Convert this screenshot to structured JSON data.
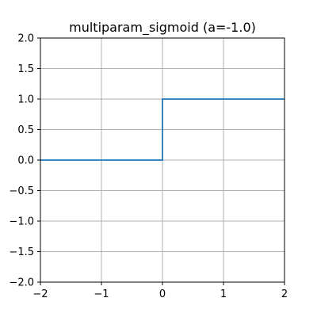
{
  "chart_data": {
    "type": "line",
    "title": "multiparam_sigmoid (a=-1.0)",
    "xlabel": "",
    "ylabel": "",
    "xlim": [
      -2,
      2
    ],
    "ylim": [
      -2,
      2
    ],
    "x_ticks": [
      -2,
      -1,
      0,
      1,
      2
    ],
    "x_tick_labels": [
      "−2",
      "−1",
      "0",
      "1",
      "2"
    ],
    "y_ticks": [
      2.0,
      1.5,
      1.0,
      0.5,
      0.0,
      -0.5,
      -1.0,
      -1.5,
      -2.0
    ],
    "y_tick_labels": [
      "2.0",
      "1.5",
      "1.0",
      "0.5",
      "0.0",
      "−0.5",
      "−1.0",
      "−1.5",
      "−2.0"
    ],
    "grid": true,
    "series": [
      {
        "color": "#1f77b4",
        "x": [
          -2,
          0,
          0,
          2
        ],
        "y": [
          0,
          0,
          1,
          1
        ]
      }
    ]
  }
}
